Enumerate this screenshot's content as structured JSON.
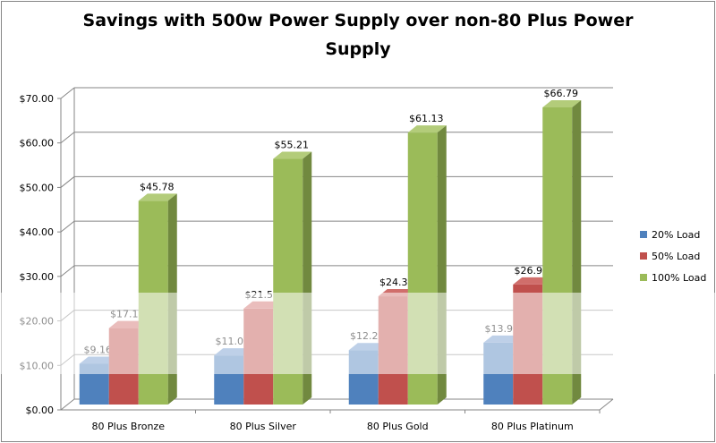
{
  "chart_data": {
    "type": "bar",
    "title_line1": "Savings with 500w Power Supply over non-80 Plus Power",
    "title_line2": "Supply",
    "categories": [
      "80 Plus Bronze",
      "80 Plus Silver",
      "80 Plus Gold",
      "80 Plus Platinum"
    ],
    "series": [
      {
        "name": "20% Load",
        "color": "#4f81bd",
        "values": [
          9.16,
          11.04,
          12.23,
          13.9
        ],
        "labels": [
          "$9.16",
          "$11.04",
          "$12.23",
          "$13.90"
        ]
      },
      {
        "name": "50% Load",
        "color": "#c0504d",
        "values": [
          17.18,
          21.57,
          24.33,
          26.98
        ],
        "labels": [
          "$17.18",
          "$21.57",
          "$24.33",
          "$26.98"
        ]
      },
      {
        "name": "100% Load",
        "color": "#9bbb59",
        "values": [
          45.78,
          55.21,
          61.13,
          66.79
        ],
        "labels": [
          "$45.78",
          "$55.21",
          "$61.13",
          "$66.79"
        ]
      }
    ],
    "yticks": [
      "$0.00",
      "$10.00",
      "$20.00",
      "$30.00",
      "$40.00",
      "$50.00",
      "$60.00",
      "$70.00"
    ],
    "ylim": [
      0,
      70
    ],
    "grid": true,
    "legend": "right",
    "style": "3d-clustered-column"
  }
}
